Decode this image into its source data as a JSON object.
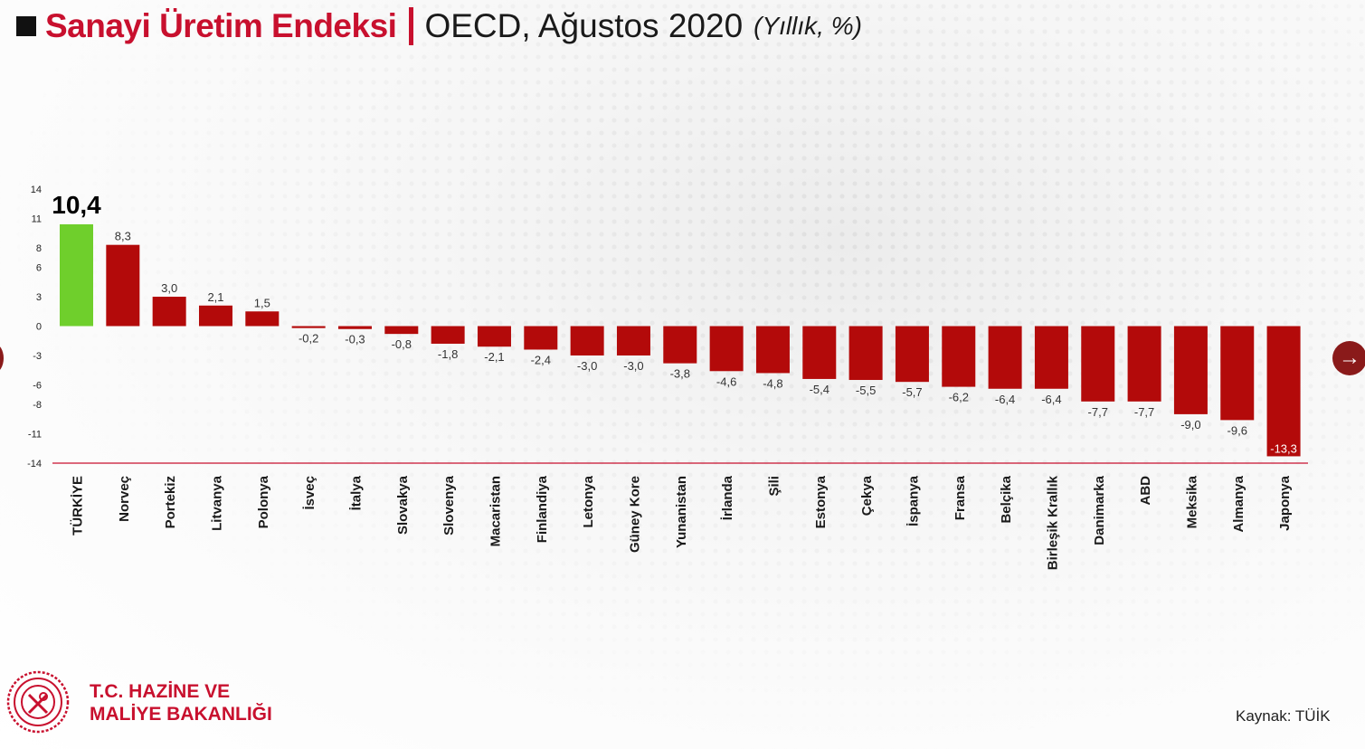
{
  "header": {
    "title_main": "Sanayi Üretim Endeksi",
    "title_sub": "OECD, Ağustos 2020",
    "title_unit": "(Yıllık, %)"
  },
  "footer": {
    "org_line1": "T.C. HAZİNE VE",
    "org_line2": "MALİYE BAKANLIĞI",
    "source": "Kaynak: TÜİK"
  },
  "nav": {
    "next_icon": "arrow-right-icon"
  },
  "colors": {
    "brand": "#c8102e",
    "bar": "#b30a0a",
    "highlight": "#6fcf2c"
  },
  "chart_data": {
    "type": "bar",
    "categories": [
      "TÜRKİYE",
      "Norveç",
      "Portekiz",
      "Litvanya",
      "Polonya",
      "İsveç",
      "İtalya",
      "Slovakya",
      "Slovenya",
      "Macaristan",
      "Finlandiya",
      "Letonya",
      "Güney Kore",
      "Yunanistan",
      "İrlanda",
      "Şili",
      "Estonya",
      "Çekya",
      "İspanya",
      "Fransa",
      "Belçika",
      "Birleşik Krallık",
      "Danimarka",
      "ABD",
      "Meksika",
      "Almanya",
      "Japonya"
    ],
    "values": [
      10.4,
      8.3,
      3.0,
      2.1,
      1.5,
      -0.2,
      -0.3,
      -0.8,
      -1.8,
      -2.1,
      -2.4,
      -3.0,
      -3.0,
      -3.8,
      -4.6,
      -4.8,
      -5.4,
      -5.5,
      -5.7,
      -6.2,
      -6.4,
      -6.4,
      -7.7,
      -7.7,
      -9.0,
      -9.6,
      -13.3
    ],
    "labels": [
      "10,4",
      "8,3",
      "3,0",
      "2,1",
      "1,5",
      "-0,2",
      "-0,3",
      "-0,8",
      "-1,8",
      "-2,1",
      "-2,4",
      "-3,0",
      "-3,0",
      "-3,8",
      "-4,6",
      "-4,8",
      "-5,4",
      "-5,5",
      "-5,7",
      "-6,2",
      "-6,4",
      "-6,4",
      "-7,7",
      "-7,7",
      "-9,0",
      "-9,6",
      "-13,3"
    ],
    "highlight_index": 0,
    "yticks": [
      14,
      11,
      8,
      6,
      3,
      0,
      -3,
      -6,
      -8,
      -11,
      -14
    ],
    "ylim": [
      -14,
      14
    ],
    "grid": false
  }
}
